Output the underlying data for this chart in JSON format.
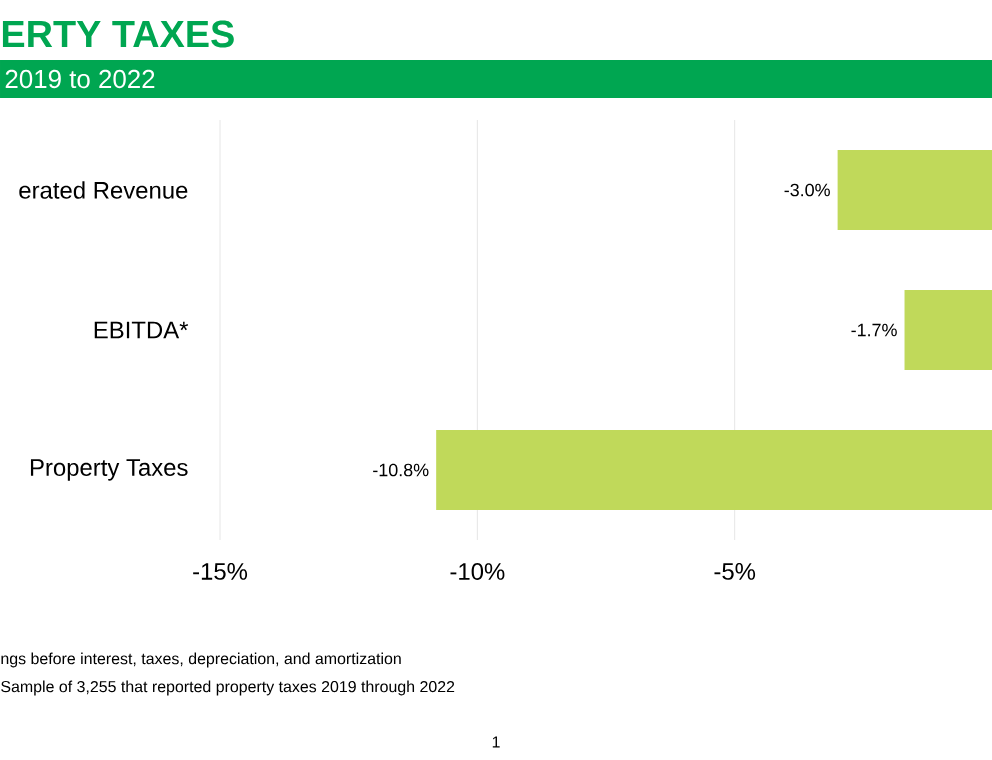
{
  "chart_data": {
    "type": "bar",
    "orientation": "horizontal",
    "title": "ERTY TAXES",
    "subtitle": "2019 to 2022",
    "categories": [
      "erated Revenue",
      "EBITDA*",
      "Property Taxes"
    ],
    "values": [
      -3.0,
      -1.7,
      -10.8
    ],
    "value_labels": [
      "-3.0%",
      "-1.7%",
      "-10.8%"
    ],
    "color": "#c0d95a",
    "xlim": [
      -15,
      0
    ],
    "xticks": [
      {
        "value": -15,
        "label": "-15%"
      },
      {
        "value": -10,
        "label": "-10%"
      },
      {
        "value": -5,
        "label": "-5%"
      }
    ],
    "grid": "x",
    "annotations": [
      "ngs before interest, taxes, depreciation, and amortization",
      "Sample of 3,255 that reported property taxes 2019 through 2022",
      "1"
    ]
  }
}
